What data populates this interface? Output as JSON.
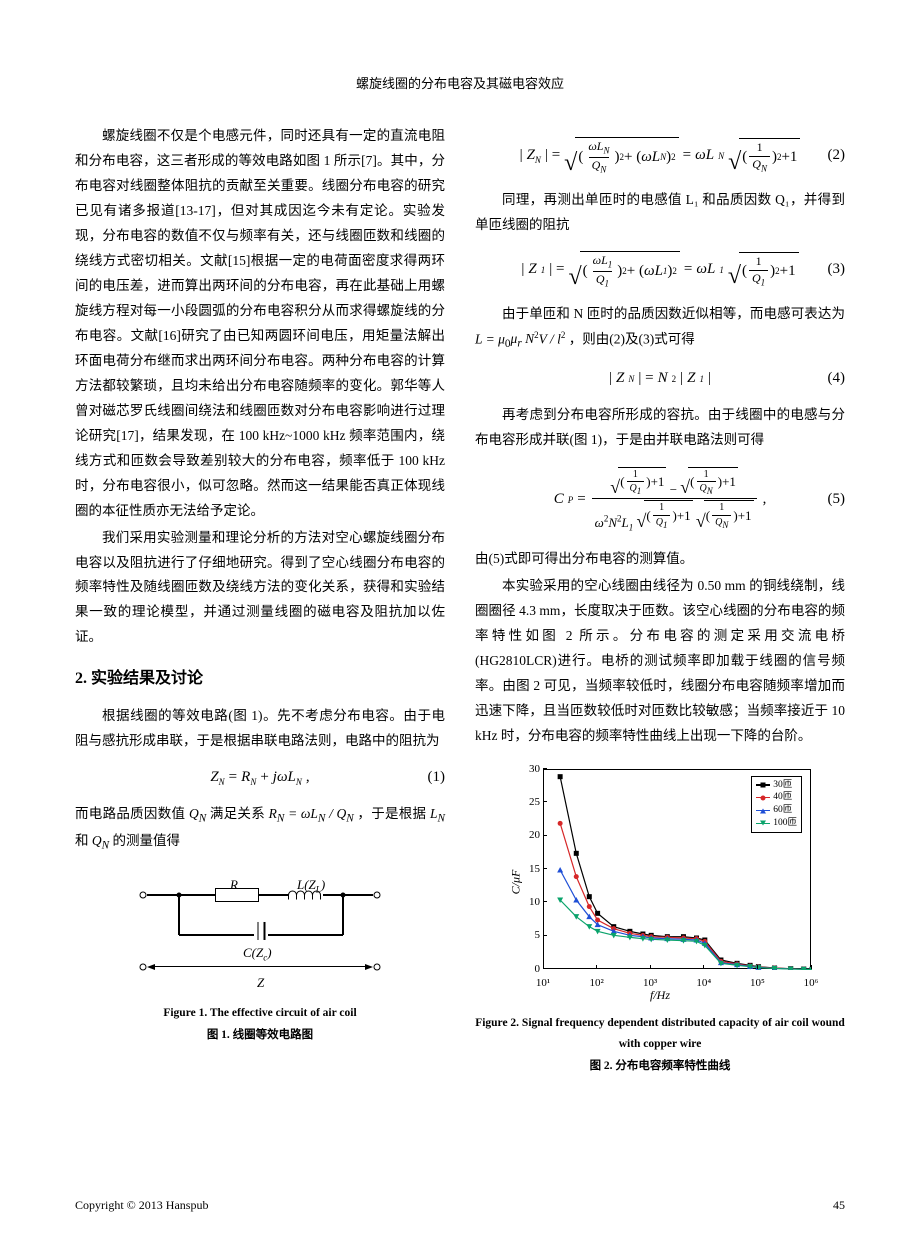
{
  "header": {
    "title": "螺旋线圈的分布电容及其磁电容效应"
  },
  "left": {
    "p1": "螺旋线圈不仅是个电感元件，同时还具有一定的直流电阻和分布电容，这三者形成的等效电路如图 1 所示[7]。其中，分布电容对线圈整体阻抗的贡献至关重要。线圈分布电容的研究已见有诸多报道[13-17]，但对其成因迄今未有定论。实验发现，分布电容的数值不仅与频率有关，还与线圈匝数和线圈的绕线方式密切相关。文献[15]根据一定的电荷面密度求得两环间的电压差，进而算出两环间的分布电容，再在此基础上用螺旋线方程对每一小段圆弧的分布电容积分从而求得螺旋线的分布电容。文献[16]研究了由已知两圆环间电压，用矩量法解出环面电荷分布继而求出两环间分布电容。两种分布电容的计算方法都较繁琐，且均未给出分布电容随频率的变化。郭华等人曾对磁芯罗氏线圈间绕法和线圈匝数对分布电容影响进行过理论研究[17]，结果发现，在 100 kHz~1000 kHz 频率范围内，绕线方式和匝数会导致差别较大的分布电容，频率低于 100 kHz 时，分布电容很小，似可忽略。然而这一结果能否真正体现线圈的本征性质亦无法给予定论。",
    "p2": "我们采用实验测量和理论分析的方法对空心螺旋线圈分布电容以及阻抗进行了仔细地研究。得到了空心线圈分布电容的频率特性及随线圈匝数及绕线方法的变化关系，获得和实验结果一致的理论模型，并通过测量线圈的磁电容及阻抗加以佐证。",
    "section": "2. 实验结果及讨论",
    "p3": "根据线圈的等效电路(图 1)。先不考虑分布电容。由于电阻与感抗形成串联，于是根据串联电路法则，电路中的阻抗为",
    "eq1": {
      "body": "Z_N = R_N + jωL_N ,",
      "num": "(1)"
    },
    "p4_a": "而电路品质因数值 ",
    "p4_b": " 满足关系 ",
    "p4_c": " ，于是根据 ",
    "p4_d": " 的测量值得",
    "q_n": "Q_N",
    "rel": "R_N = ωL_N / Q_N",
    "ln_qn": "L_N 和 Q_N",
    "fig1": {
      "labels": {
        "R": "R",
        "L": "L(Z_L)",
        "C": "C(Z_c)",
        "Z": "Z"
      },
      "caption_en": "Figure 1. The effective circuit of air coil",
      "caption_cn": "图 1. 线圈等效电路图"
    }
  },
  "right": {
    "eq2": {
      "num": "(2)"
    },
    "p1": "同理，再测出单匝时的电感值 L₁ 和品质因数 Q₁，并得到单匝线圈的阻抗",
    "eq3": {
      "num": "(3)"
    },
    "p2_a": "由于单匝和 N 匝时的品质因数近似相等，而电感可表达为 ",
    "p2_b": " ，则由(2)及(3)式可得",
    "l_expr": "L = μ₀μ_r N²V / l²",
    "eq4": {
      "body": "|Z_N| = N² |Z_1|",
      "num": "(4)"
    },
    "p3": "再考虑到分布电容所形成的容抗。由于线圈中的电感与分布电容形成并联(图 1)，于是由并联电路法则可得",
    "eq5": {
      "num": "(5)"
    },
    "p4": "由(5)式即可得出分布电容的测算值。",
    "p5": "本实验采用的空心线圈由线径为 0.50 mm 的铜线绕制，线圈圈径 4.3 mm，长度取决于匝数。该空心线圈的分布电容的频率特性如图 2 所示。分布电容的测定采用交流电桥(HG2810LCR)进行。电桥的测试频率即加载于线圈的信号频率。由图 2 可见，当频率较低时，线圈分布电容随频率增加而迅速下降，且当匝数较低时对匝数比较敏感；当频率接近于 10 kHz 时，分布电容的频率特性曲线上出现一下降的台阶。",
    "chart": {
      "type": "line-scatter",
      "xlabel": "f/Hz",
      "ylabel": "C/μF",
      "xscale": "log",
      "xlim": [
        10,
        1000000
      ],
      "ylim": [
        0,
        30
      ],
      "ytick_step": 5,
      "xticks": [
        10,
        100,
        1000,
        10000,
        100000,
        1000000
      ],
      "xtick_labels": [
        "10¹",
        "10²",
        "10³",
        "10⁴",
        "10⁵",
        "10⁶"
      ],
      "background_color": "#ffffff",
      "border_color": "#000000",
      "series": [
        {
          "name": "30匝",
          "color": "#000000",
          "marker": "square",
          "x": [
            20,
            40,
            70,
            100,
            200,
            400,
            700,
            1000,
            2000,
            4000,
            7000,
            10000,
            20000,
            40000,
            70000,
            100000,
            200000,
            400000,
            700000,
            1000000
          ],
          "y": [
            29.0,
            17.5,
            11.0,
            8.5,
            6.5,
            5.8,
            5.4,
            5.2,
            5.0,
            5.0,
            4.8,
            4.5,
            1.5,
            1.0,
            0.7,
            0.5,
            0.3,
            0.2,
            0.15,
            0.1
          ]
        },
        {
          "name": "40匝",
          "color": "#d62728",
          "marker": "circle",
          "x": [
            20,
            40,
            70,
            100,
            200,
            400,
            700,
            1000,
            2000,
            4000,
            7000,
            10000,
            20000,
            40000,
            70000,
            100000,
            200000,
            400000,
            700000,
            1000000
          ],
          "y": [
            22.0,
            14.0,
            9.5,
            7.5,
            6.2,
            5.5,
            5.2,
            5.0,
            4.9,
            4.8,
            4.7,
            4.3,
            1.3,
            0.9,
            0.6,
            0.45,
            0.28,
            0.18,
            0.13,
            0.09
          ]
        },
        {
          "name": "60匝",
          "color": "#1f4fd6",
          "marker": "tri-up",
          "x": [
            20,
            40,
            70,
            100,
            200,
            400,
            700,
            1000,
            2000,
            4000,
            7000,
            10000,
            20000,
            40000,
            70000,
            100000,
            200000,
            400000,
            700000,
            1000000
          ],
          "y": [
            15.0,
            10.5,
            8.0,
            6.8,
            5.8,
            5.2,
            5.0,
            4.8,
            4.7,
            4.6,
            4.5,
            4.0,
            1.1,
            0.8,
            0.55,
            0.4,
            0.25,
            0.16,
            0.12,
            0.08
          ]
        },
        {
          "name": "100匝",
          "color": "#0aa36b",
          "marker": "tri-dn",
          "x": [
            20,
            40,
            70,
            100,
            200,
            400,
            700,
            1000,
            2000,
            4000,
            7000,
            10000,
            20000,
            40000,
            70000,
            100000,
            200000,
            400000,
            700000,
            1000000
          ],
          "y": [
            10.5,
            8.0,
            6.5,
            5.8,
            5.2,
            4.9,
            4.7,
            4.6,
            4.5,
            4.4,
            4.3,
            3.7,
            1.0,
            0.7,
            0.5,
            0.36,
            0.22,
            0.14,
            0.1,
            0.07
          ]
        }
      ],
      "fig_caption_en": "Figure 2. Signal frequency dependent distributed capacity of air coil wound with copper wire",
      "fig_caption_cn": "图 2. 分布电容频率特性曲线"
    }
  },
  "footer": {
    "copyright": "Copyright © 2013 Hanspub",
    "page": "45"
  }
}
